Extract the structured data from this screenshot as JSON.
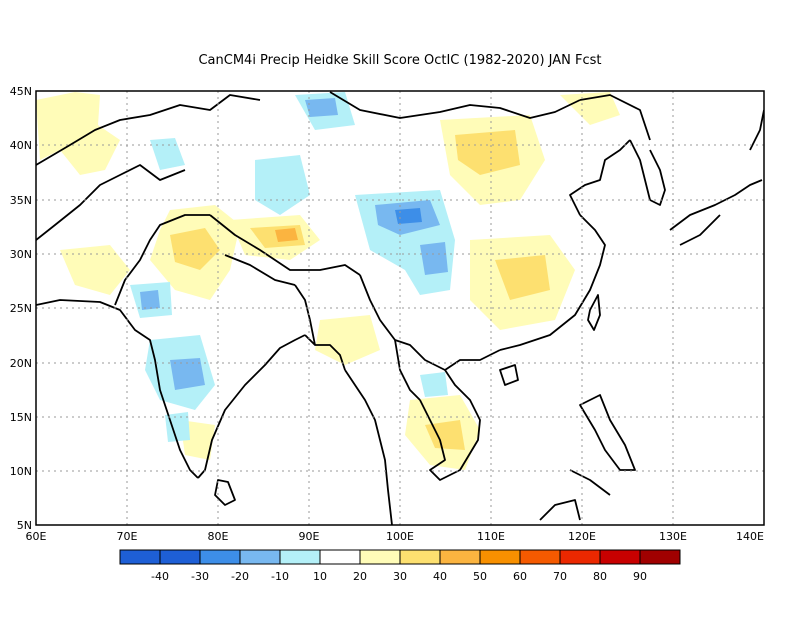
{
  "title": "CanCM4i Precip Heidke Skill Score OctIC (1982-2020) JAN Fcst",
  "lat_labels": [
    "45N",
    "40N",
    "35N",
    "30N",
    "25N",
    "20N",
    "15N",
    "10N",
    "5N"
  ],
  "lon_labels": [
    "60E",
    "70E",
    "80E",
    "90E",
    "100E",
    "110E",
    "120E",
    "130E",
    "140E"
  ],
  "extent": {
    "lon": [
      60,
      140
    ],
    "lat": [
      5,
      45
    ]
  },
  "colorbar": {
    "colors": [
      "#1e5fd6",
      "#3d8ee8",
      "#78b8f0",
      "#b4f0f8",
      "#ffffff",
      "#fffcb8",
      "#fde070",
      "#fbb440",
      "#f89000",
      "#f55a00",
      "#eb2800",
      "#c80000",
      "#a00000"
    ],
    "tick_labels": [
      "-40",
      "-30",
      "-20",
      "-10",
      "10",
      "20",
      "30",
      "40",
      "50",
      "60",
      "70",
      "80",
      "90"
    ]
  },
  "colors": {
    "coast": "#000000",
    "grid": "#9a9a9a"
  }
}
